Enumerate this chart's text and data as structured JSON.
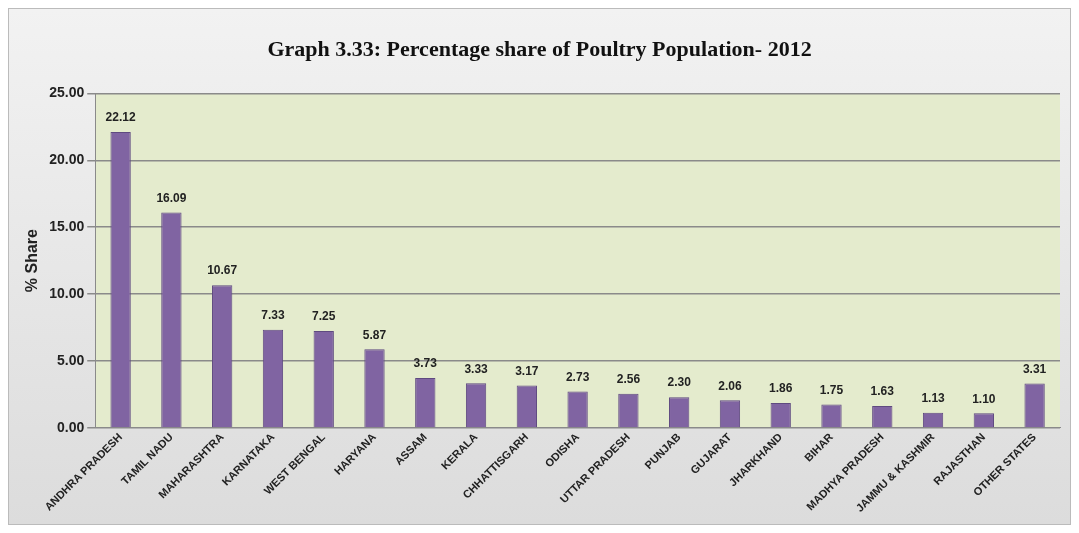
{
  "chart_data": {
    "type": "bar",
    "title": "Graph 3.33: Percentage share of Poultry Population- 2012",
    "ylabel": "% Share",
    "categories": [
      "ANDHRA PRADESH",
      "TAMIL NADU",
      "MAHARASHTRA",
      "KARNATAKA",
      "WEST BENGAL",
      "HARYANA",
      "ASSAM",
      "KERALA",
      "CHHATTISGARH",
      "ODISHA",
      "UTTAR PRADESH",
      "PUNJAB",
      "GUJARAT",
      "JHARKHAND",
      "BIHAR",
      "MADHYA PRADESH",
      "JAMMU & KASHMIR",
      "RAJASTHAN",
      "OTHER STATES"
    ],
    "values": [
      22.12,
      16.09,
      10.67,
      7.33,
      7.25,
      5.87,
      3.73,
      3.33,
      3.17,
      2.73,
      2.56,
      2.3,
      2.06,
      1.86,
      1.75,
      1.63,
      1.13,
      1.1,
      3.31
    ],
    "value_labels": [
      "22.12",
      "16.09",
      "10.67",
      "7.33",
      "7.25",
      "5.87",
      "3.73",
      "3.33",
      "3.17",
      "2.73",
      "2.56",
      "2.30",
      "2.06",
      "1.86",
      "1.75",
      "1.63",
      "1.13",
      "1.10",
      "3.31"
    ],
    "color": "#8064a2",
    "ylim": [
      0,
      25
    ],
    "yticks": [
      {
        "value": 0,
        "label": "0.00"
      },
      {
        "value": 5,
        "label": "5.00"
      },
      {
        "value": 10,
        "label": "10.00"
      },
      {
        "value": 15,
        "label": "15.00"
      },
      {
        "value": 20,
        "label": "20.00"
      },
      {
        "value": 25,
        "label": "25.00"
      }
    ],
    "grid": "y",
    "legend": false
  }
}
